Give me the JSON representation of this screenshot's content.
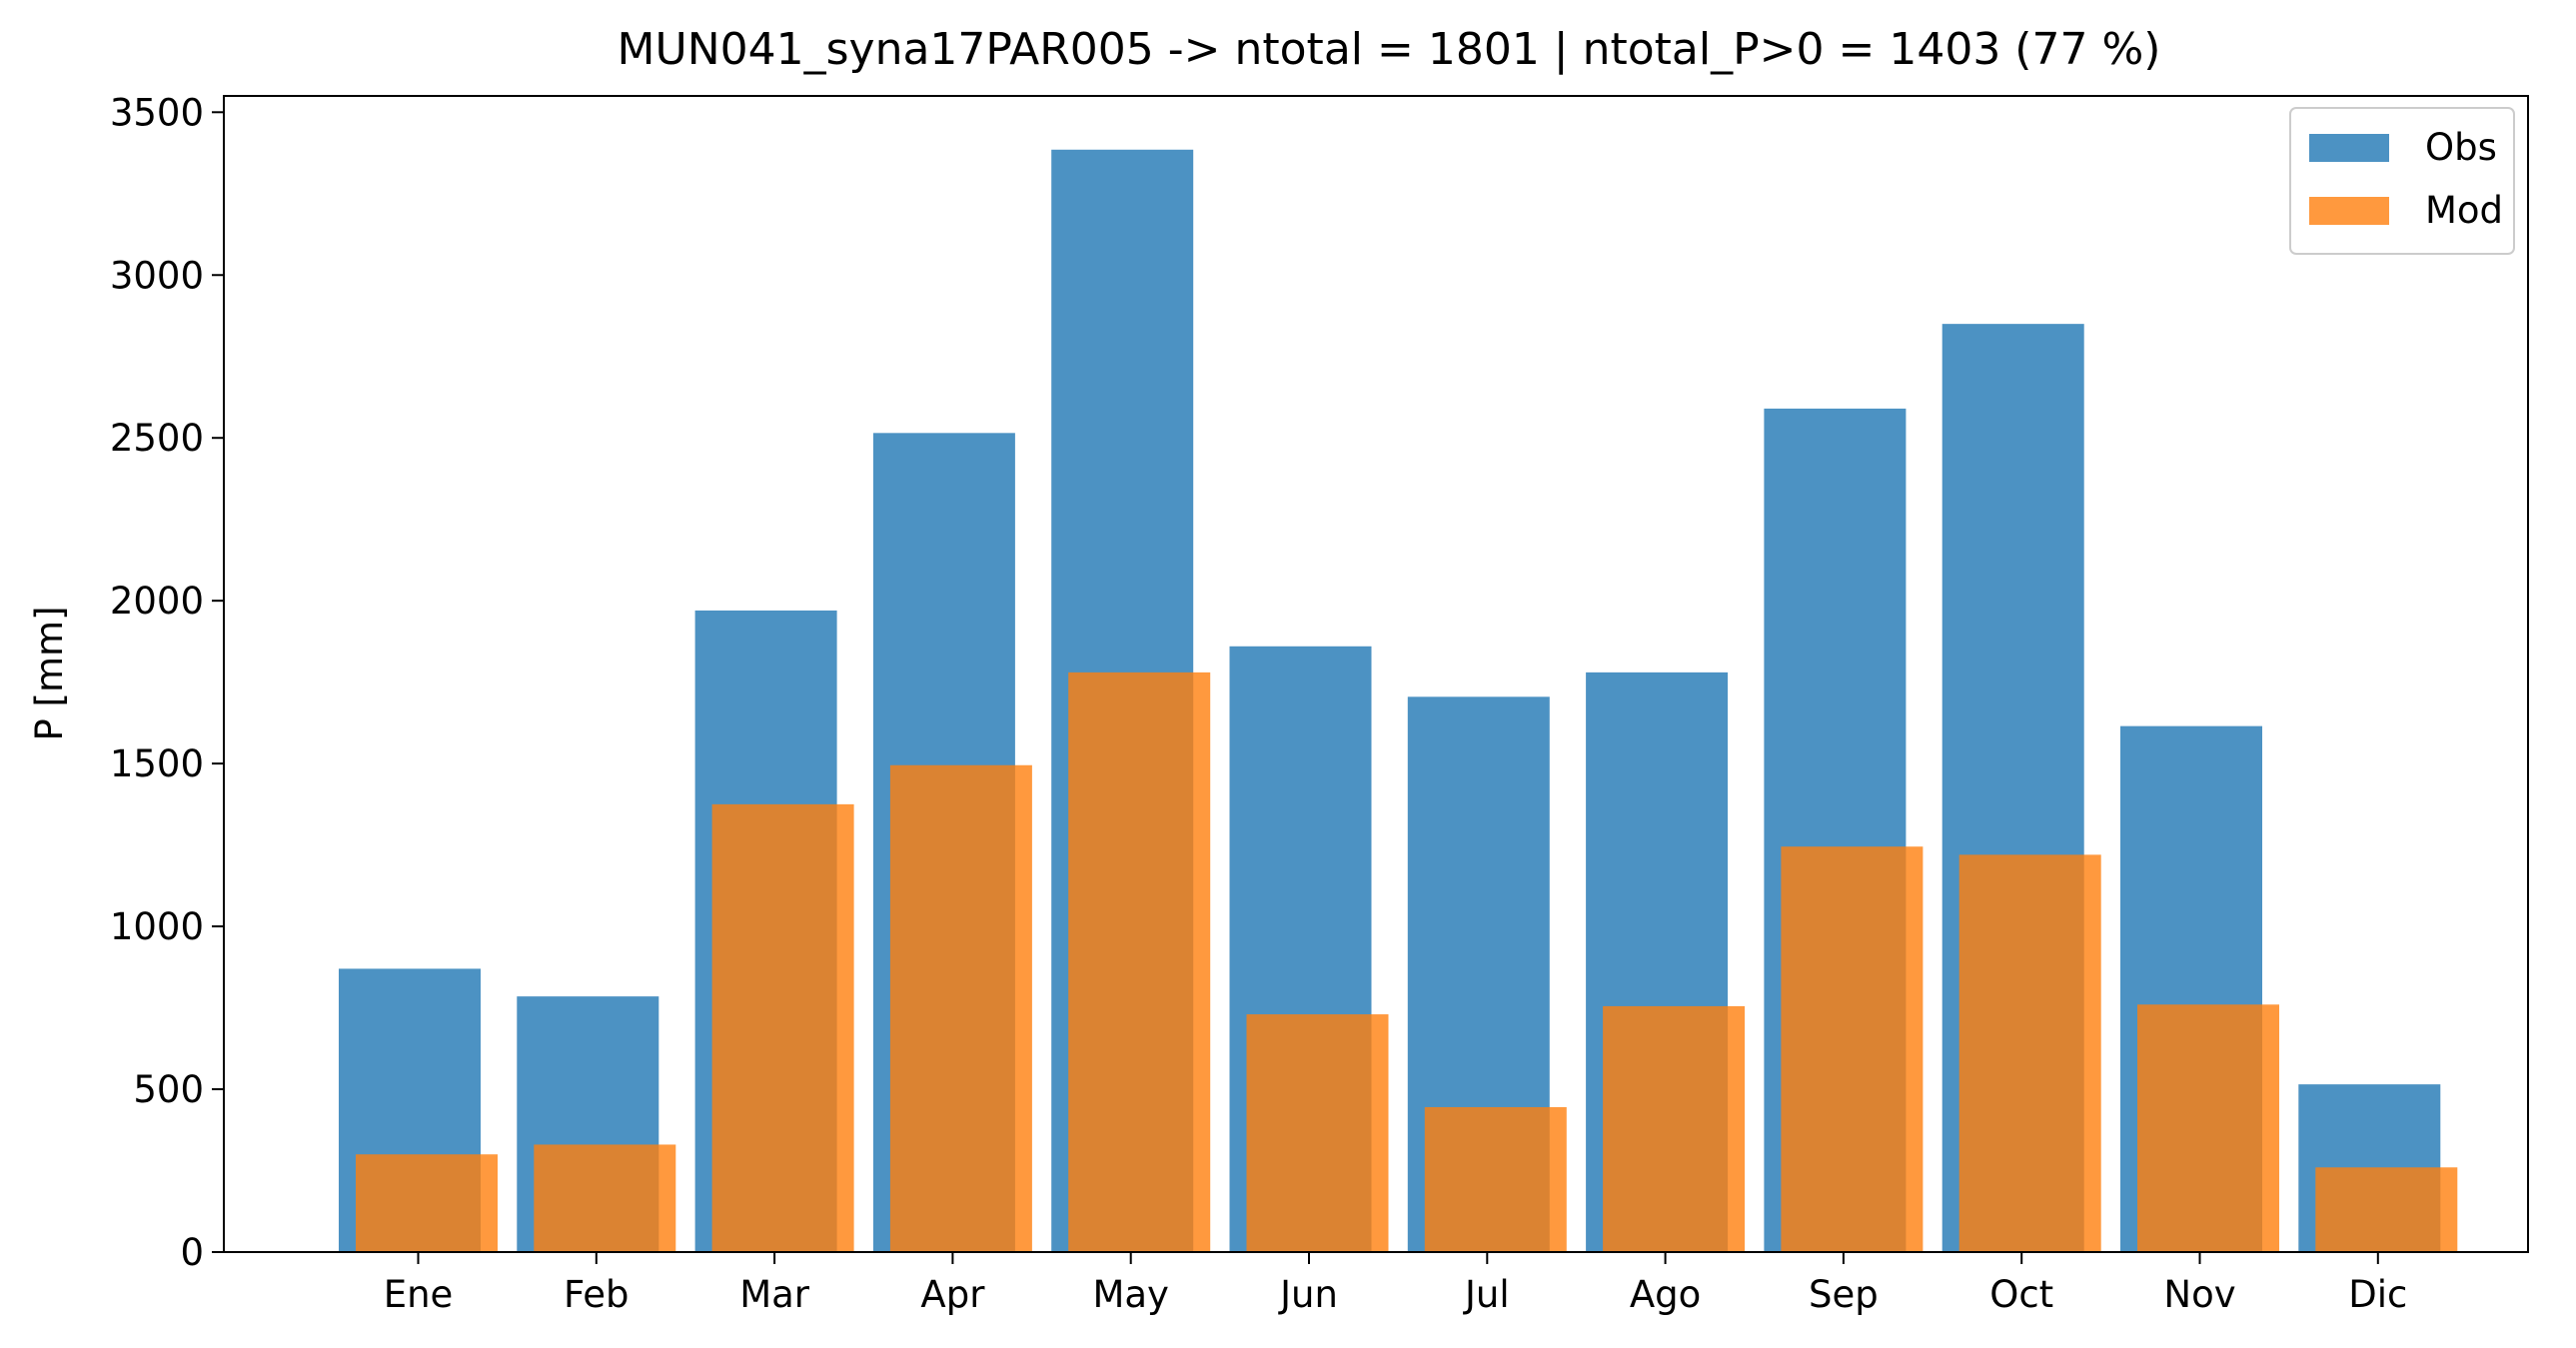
{
  "chart_data": {
    "type": "bar",
    "title": "MUN041_syna17PAR005 -> ntotal = 1801 | ntotal_P>0 = 1403 (77 %)",
    "xlabel": "",
    "ylabel": "P [mm]",
    "categories": [
      "Ene",
      "Feb",
      "Mar",
      "Apr",
      "May",
      "Jun",
      "Jul",
      "Ago",
      "Sep",
      "Oct",
      "Nov",
      "Dic"
    ],
    "series": [
      {
        "name": "Obs",
        "color": "#1f77b4",
        "values": [
          870,
          785,
          1970,
          2515,
          3385,
          1860,
          1705,
          1780,
          2590,
          2850,
          1615,
          515
        ]
      },
      {
        "name": "Mod",
        "color": "#ff7f0e",
        "values": [
          300,
          330,
          1375,
          1495,
          1780,
          730,
          445,
          755,
          1245,
          1220,
          760,
          260
        ]
      }
    ],
    "ylim": [
      0,
      3550
    ],
    "yticks": [
      0,
      500,
      1000,
      1500,
      2000,
      2500,
      3000,
      3500
    ],
    "legend": "top-right",
    "grid": false
  }
}
